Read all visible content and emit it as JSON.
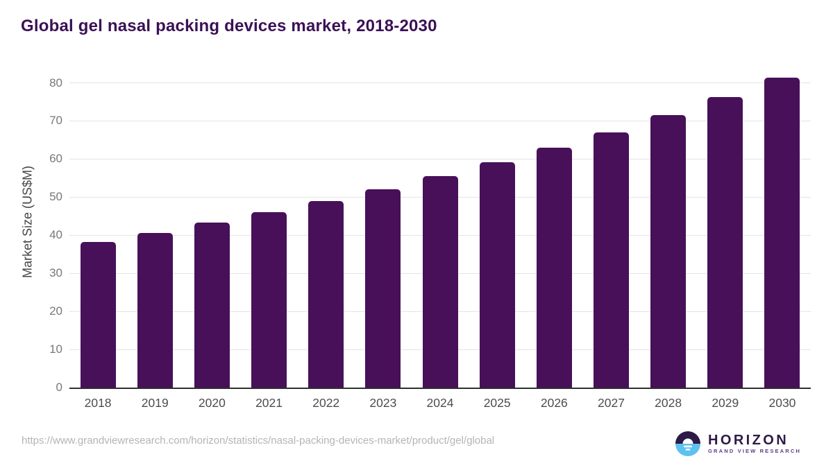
{
  "chart_data": {
    "type": "bar",
    "title": "Global gel nasal packing devices market, 2018-2030",
    "categories": [
      "2018",
      "2019",
      "2020",
      "2021",
      "2022",
      "2023",
      "2024",
      "2025",
      "2026",
      "2027",
      "2028",
      "2029",
      "2030"
    ],
    "values": [
      38.3,
      40.6,
      43.4,
      46.0,
      49.0,
      52.1,
      55.6,
      59.1,
      63.0,
      67.0,
      71.5,
      76.3,
      81.4
    ],
    "xlabel": "",
    "ylabel": "Market Size (US$M)",
    "ylim": [
      0,
      80
    ],
    "yticks": [
      0,
      10,
      20,
      30,
      40,
      50,
      60,
      70,
      80
    ],
    "grid": true,
    "legend": "none",
    "bar_color": "#471059"
  },
  "footer": {
    "source_url": "https://www.grandviewresearch.com/horizon/statistics/nasal-packing-devices-market/product/gel/global",
    "logo": {
      "name": "HORIZON",
      "subtitle": "GRAND VIEW RESEARCH"
    }
  },
  "colors": {
    "title_text": "#3b1056",
    "bar": "#471059",
    "gridline": "#e4e4e4",
    "axis_line": "#2f2f2f",
    "tick_text": "#787878",
    "category_text": "#4d4d4d",
    "url_text": "#b4b4b4",
    "logo_navy": "#2e1a47",
    "logo_blue": "#5ec1f0",
    "logo_subtitle": "#5d3a8a"
  }
}
